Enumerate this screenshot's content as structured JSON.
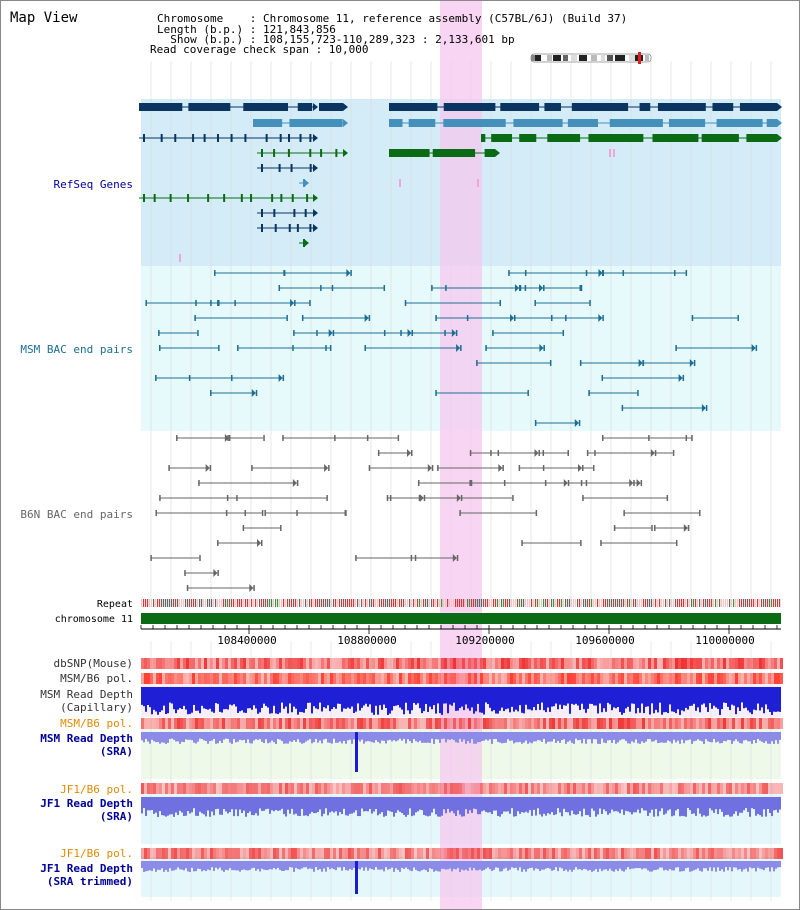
{
  "title": "Map View",
  "info": {
    "line1_key": "Chromosome    ",
    "line1_val": ": Chromosome 11, reference assembly (C57BL/6J) (Build 37)",
    "line2_key": "Length (b.p.) ",
    "line2_val": ": 121,843,856",
    "line3_key": "  Show (b.p.) ",
    "line3_val": ": 108,155,723-110,289,323 : 2,133,601 bp",
    "line4": "Read coverage check span : 10,000"
  },
  "tracks": {
    "refseq": "RefSeq Genes",
    "msm_bac": "MSM BAC end pairs",
    "b6n_bac": "B6N BAC end pairs",
    "repeat": "Repeat",
    "chromosome": "chromosome 11",
    "dbsnp": "dbSNP(Mouse)",
    "msm_b6_pol_1": "MSM/B6 pol.",
    "msm_read_depth_cap_1": "MSM Read Depth",
    "msm_read_depth_cap_2": "(Capillary)",
    "msm_b6_pol_2": "MSM/B6 pol.",
    "msm_read_depth_sra_1": "MSM Read Depth",
    "msm_read_depth_sra_2": "(SRA)",
    "jf1_b6_pol_1": "JF1/B6 pol.",
    "jf1_read_depth_sra_1": "JF1 Read Depth",
    "jf1_read_depth_sra_2": "(SRA)",
    "jf1_b6_pol_2": "JF1/B6 pol.",
    "jf1_read_depth_trim_1": "JF1 Read Depth",
    "jf1_read_depth_trim_2": "(SRA trimmed)"
  },
  "axis_ticks": [
    "108400000",
    "108800000",
    "109200000",
    "109600000",
    "110000000"
  ],
  "colors": {
    "refseq_bg": "#d4ecf7",
    "msm_bg": "#e6f9fb",
    "highlight": "#f5c8ef",
    "gene_dark": "#0a3560",
    "gene_mid": "#4590bb",
    "gene_green": "#0b6b14",
    "msm_line": "#1c6e93",
    "b6n_line": "#666666",
    "chrom": "#0b6b14",
    "label_blue": "#00009a",
    "label_teal": "#1c6e93",
    "label_orange": "#e08a00"
  }
}
